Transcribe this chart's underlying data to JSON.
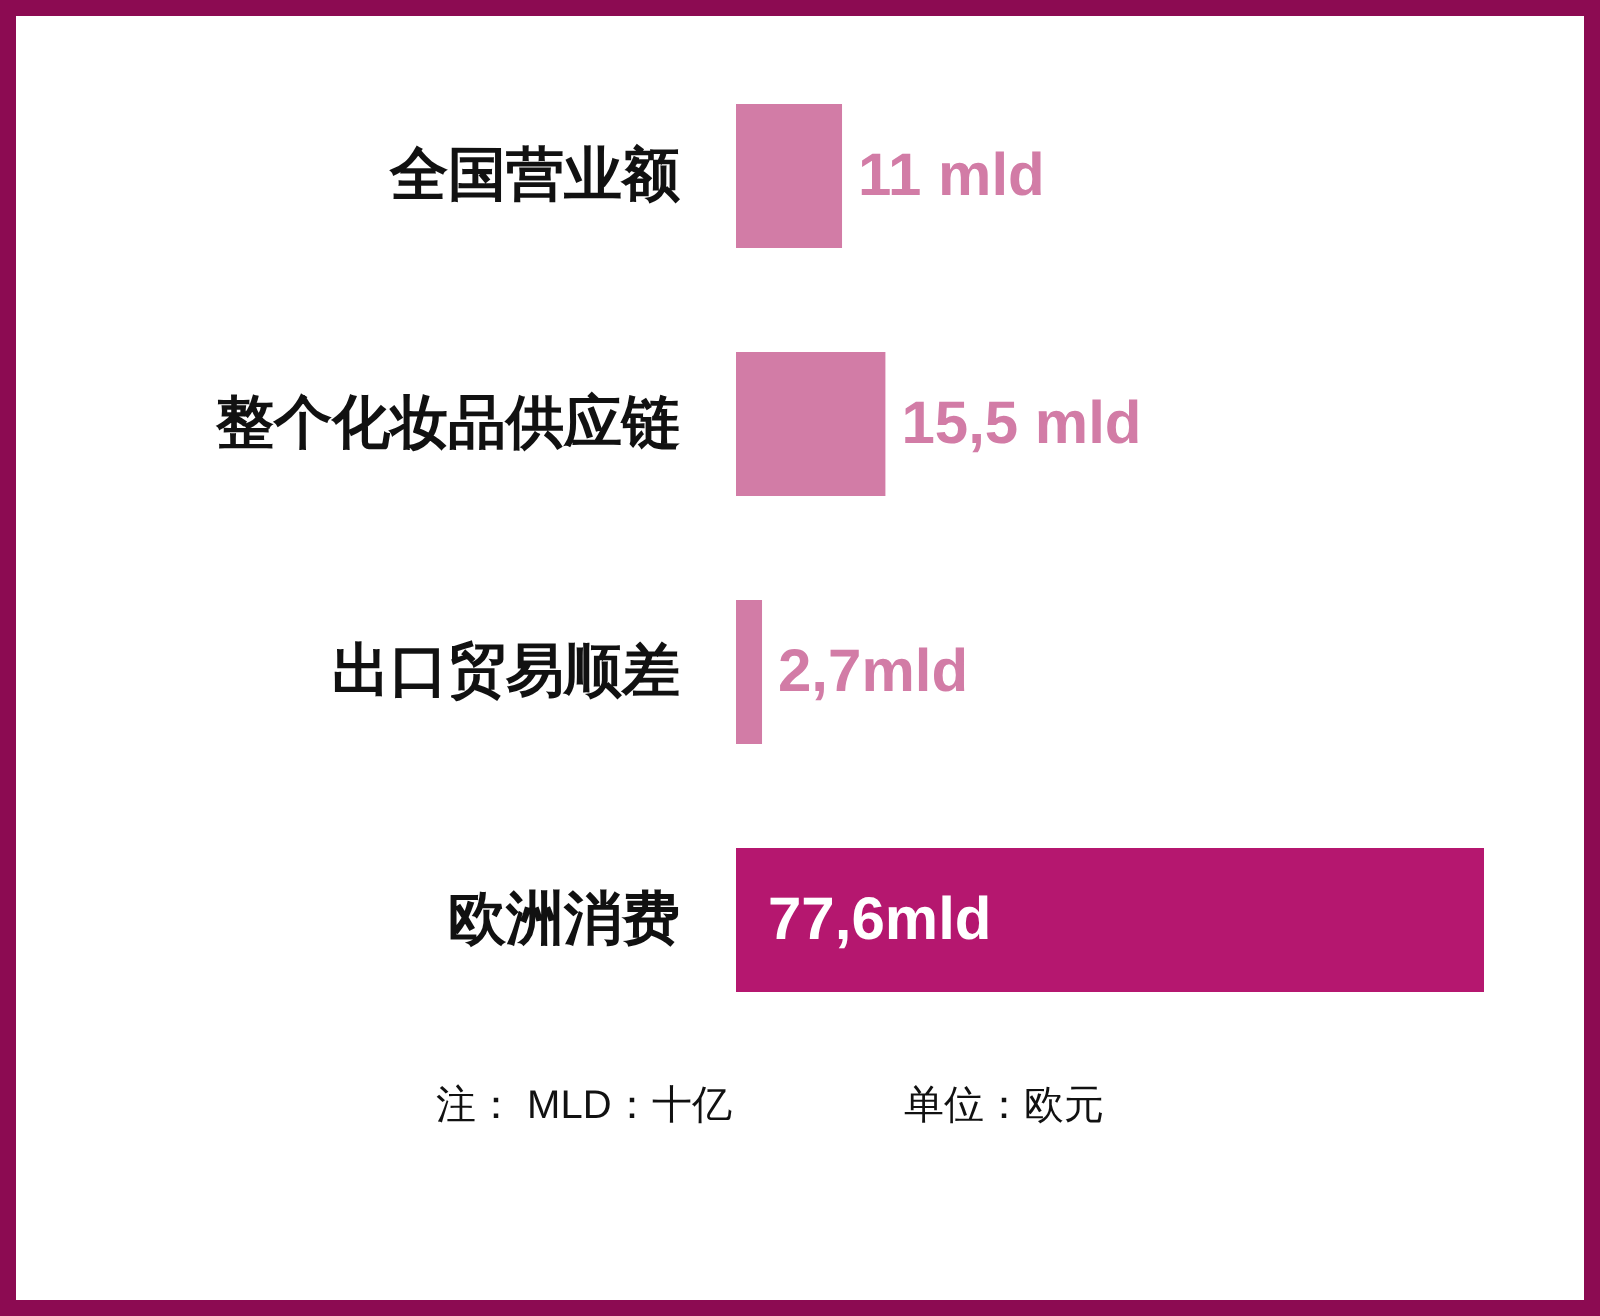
{
  "chart_data": {
    "type": "bar",
    "orientation": "horizontal",
    "categories": [
      "全国营业额",
      "整个化妆品供应链",
      "出口贸易顺差",
      "欧洲消费"
    ],
    "values": [
      11,
      15.5,
      2.7,
      77.6
    ],
    "colors": [
      "#d27ca6",
      "#d27ca6",
      "#d27ca6",
      "#b5176f"
    ],
    "value_labels": [
      "11 mld",
      "15,5 mld",
      "2,7mld",
      "77,6mld"
    ],
    "annotations": [
      "注： MLD：十亿",
      "单位：欧元"
    ]
  }
}
